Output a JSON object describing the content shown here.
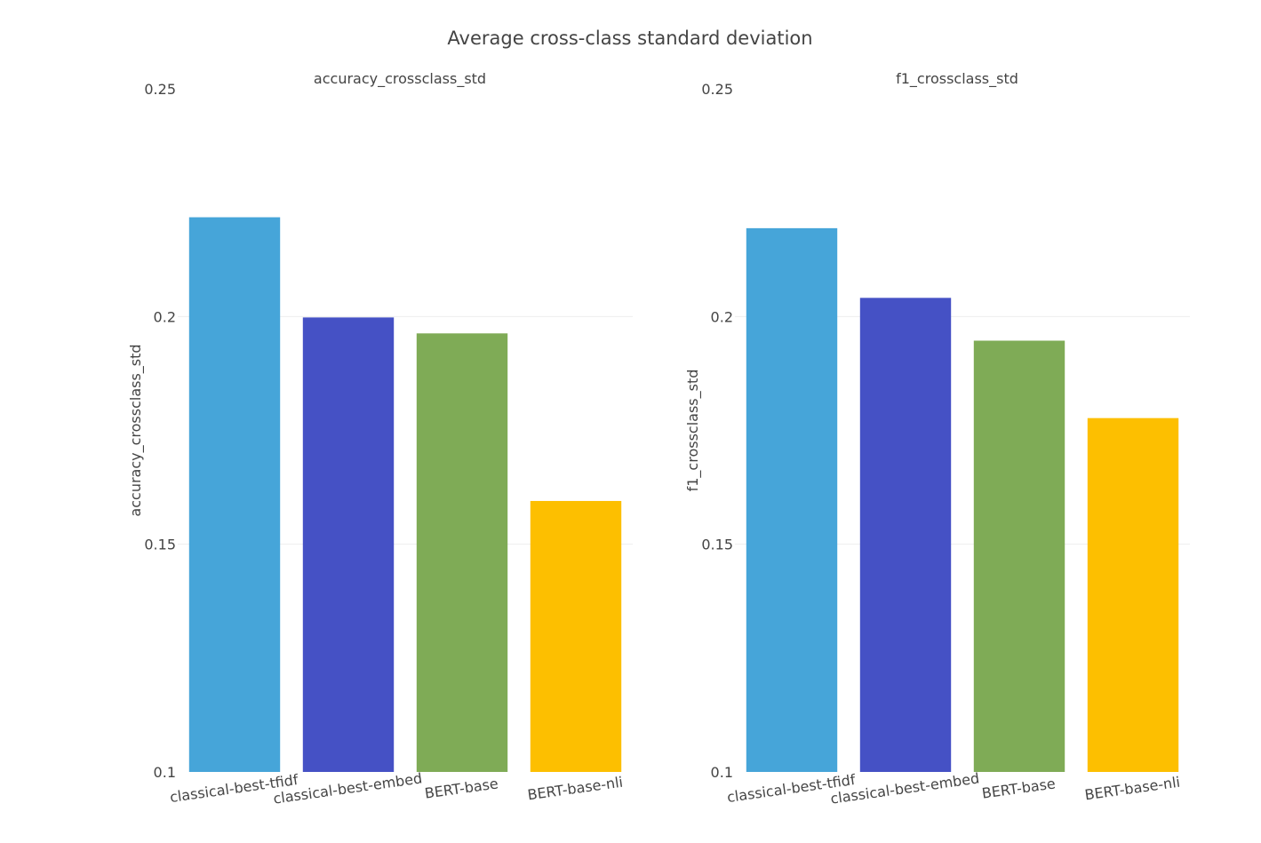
{
  "title": "Average cross-class standard deviation",
  "chart_data": [
    {
      "type": "bar",
      "title": "accuracy_crossclass_std",
      "xlabel": "",
      "ylabel": "accuracy_crossclass_std",
      "categories": [
        "classical-best-tfidf",
        "classical-best-embed",
        "BERT-base",
        "BERT-base-nli"
      ],
      "values": [
        0.2218,
        0.1998,
        0.1963,
        0.1595
      ],
      "colors": [
        "#46a5d9",
        "#4551c5",
        "#7fab56",
        "#fdbf00"
      ],
      "ylim": [
        0.1,
        0.25
      ],
      "yticks": [
        0.1,
        0.15,
        0.2,
        0.25
      ],
      "ytick_labels": [
        "0.1",
        "0.15",
        "0.2",
        "0.25"
      ],
      "grid": true
    },
    {
      "type": "bar",
      "title": "f1_crossclass_std",
      "xlabel": "",
      "ylabel": "f1_crossclass_std",
      "categories": [
        "classical-best-tfidf",
        "classical-best-embed",
        "BERT-base",
        "BERT-base-nli"
      ],
      "values": [
        0.2194,
        0.2041,
        0.1947,
        0.1777
      ],
      "colors": [
        "#46a5d9",
        "#4551c5",
        "#7fab56",
        "#fdbf00"
      ],
      "ylim": [
        0.1,
        0.25
      ],
      "yticks": [
        0.1,
        0.15,
        0.2,
        0.25
      ],
      "ytick_labels": [
        "0.1",
        "0.15",
        "0.2",
        "0.25"
      ],
      "grid": true
    }
  ]
}
